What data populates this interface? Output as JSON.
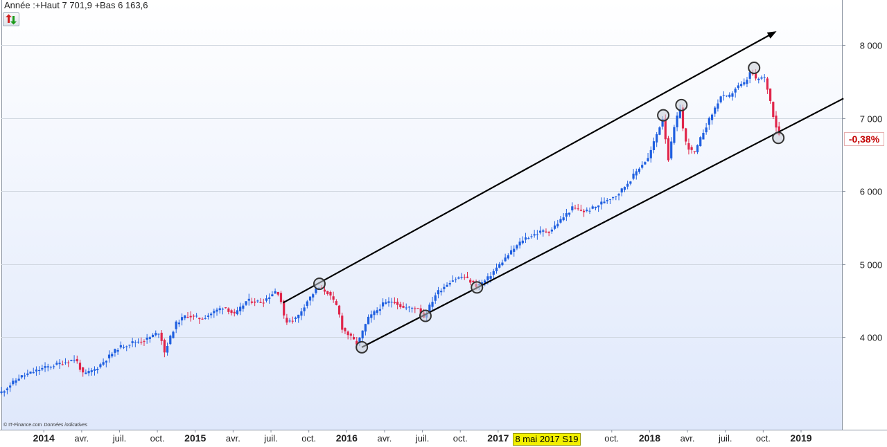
{
  "header": {
    "title": "Année :+Haut 7 701,9 +Bas 6 163,6"
  },
  "toolbar": {
    "refresh_icon": "refresh-arrows-icon"
  },
  "footer": {
    "copyright": "© IT-Finance.com",
    "notice": "Données indicatives"
  },
  "badges": {
    "change": "-0,38%",
    "cursor_date": "8 mai 2017 S19"
  },
  "colors": {
    "up_candle": "#1f5fe0",
    "down_candle": "#e0254a",
    "plot_bg_top": "#ffffff",
    "plot_bg_bottom": "#dfe8fb",
    "channel_line": "#000000",
    "marker_fill": "#c8ced6",
    "change_text": "#c40000",
    "date_badge": "#f2f000"
  },
  "chart_data": {
    "type": "candlestick",
    "x_ticks": [
      {
        "label": "2014",
        "t": 2014.0,
        "bold": true
      },
      {
        "label": "avr.",
        "t": 2014.25
      },
      {
        "label": "juil.",
        "t": 2014.5
      },
      {
        "label": "oct.",
        "t": 2014.75
      },
      {
        "label": "2015",
        "t": 2015.0,
        "bold": true
      },
      {
        "label": "avr.",
        "t": 2015.25
      },
      {
        "label": "juil.",
        "t": 2015.5
      },
      {
        "label": "oct.",
        "t": 2015.75
      },
      {
        "label": "2016",
        "t": 2016.0,
        "bold": true
      },
      {
        "label": "avr.",
        "t": 2016.25
      },
      {
        "label": "juil.",
        "t": 2016.5
      },
      {
        "label": "oct.",
        "t": 2016.75
      },
      {
        "label": "2017",
        "t": 2017.0,
        "bold": true
      },
      {
        "label": "oct.",
        "t": 2017.75
      },
      {
        "label": "2018",
        "t": 2018.0,
        "bold": true
      },
      {
        "label": "avr.",
        "t": 2018.25
      },
      {
        "label": "juil.",
        "t": 2018.5
      },
      {
        "label": "oct.",
        "t": 2018.75
      },
      {
        "label": "2019",
        "t": 2019.0,
        "bold": true
      }
    ],
    "y_ticks": [
      {
        "label": "4 000",
        "v": 4000
      },
      {
        "label": "5 000",
        "v": 5000
      },
      {
        "label": "6 000",
        "v": 6000
      },
      {
        "label": "7 000",
        "v": 7000
      },
      {
        "label": "8 000",
        "v": 8000
      }
    ],
    "x_range": [
      2013.72,
      2019.27
    ],
    "y_range": [
      2730,
      8620
    ],
    "grid": true,
    "path": [
      [
        2013.72,
        3230
      ],
      [
        2013.85,
        3450
      ],
      [
        2014.0,
        3570
      ],
      [
        2014.12,
        3640
      ],
      [
        2014.22,
        3700
      ],
      [
        2014.27,
        3480
      ],
      [
        2014.35,
        3560
      ],
      [
        2014.5,
        3850
      ],
      [
        2014.6,
        3930
      ],
      [
        2014.68,
        3960
      ],
      [
        2014.78,
        4080
      ],
      [
        2014.8,
        3760
      ],
      [
        2014.88,
        4180
      ],
      [
        2014.95,
        4300
      ],
      [
        2015.05,
        4250
      ],
      [
        2015.12,
        4330
      ],
      [
        2015.2,
        4420
      ],
      [
        2015.27,
        4300
      ],
      [
        2015.35,
        4500
      ],
      [
        2015.45,
        4480
      ],
      [
        2015.55,
        4650
      ],
      [
        2015.58,
        4460
      ],
      [
        2015.6,
        4210
      ],
      [
        2015.68,
        4260
      ],
      [
        2015.75,
        4500
      ],
      [
        2015.82,
        4680
      ],
      [
        2015.88,
        4620
      ],
      [
        2015.95,
        4400
      ],
      [
        2015.98,
        4120
      ],
      [
        2016.08,
        3900
      ],
      [
        2016.15,
        4250
      ],
      [
        2016.25,
        4450
      ],
      [
        2016.32,
        4500
      ],
      [
        2016.38,
        4400
      ],
      [
        2016.48,
        4400
      ],
      [
        2016.52,
        4270
      ],
      [
        2016.6,
        4600
      ],
      [
        2016.7,
        4780
      ],
      [
        2016.78,
        4830
      ],
      [
        2016.87,
        4700
      ],
      [
        2016.93,
        4780
      ],
      [
        2017.0,
        4950
      ],
      [
        2017.1,
        5180
      ],
      [
        2017.18,
        5350
      ],
      [
        2017.3,
        5450
      ],
      [
        2017.35,
        5450
      ],
      [
        2017.42,
        5600
      ],
      [
        2017.5,
        5770
      ],
      [
        2017.58,
        5720
      ],
      [
        2017.65,
        5780
      ],
      [
        2017.72,
        5880
      ],
      [
        2017.8,
        5960
      ],
      [
        2017.88,
        6150
      ],
      [
        2017.95,
        6350
      ],
      [
        2018.0,
        6450
      ],
      [
        2018.06,
        6800
      ],
      [
        2018.1,
        7030
      ],
      [
        2018.13,
        6400
      ],
      [
        2018.17,
        6850
      ],
      [
        2018.21,
        7150
      ],
      [
        2018.24,
        6700
      ],
      [
        2018.28,
        6550
      ],
      [
        2018.31,
        6520
      ],
      [
        2018.36,
        6800
      ],
      [
        2018.42,
        7050
      ],
      [
        2018.48,
        7300
      ],
      [
        2018.53,
        7280
      ],
      [
        2018.58,
        7420
      ],
      [
        2018.64,
        7480
      ],
      [
        2018.68,
        7650
      ],
      [
        2018.71,
        7520
      ],
      [
        2018.74,
        7550
      ],
      [
        2018.77,
        7550
      ],
      [
        2018.8,
        7300
      ],
      [
        2018.83,
        7000
      ],
      [
        2018.86,
        6780
      ]
    ],
    "channel": {
      "upper": [
        [
          2015.58,
          4470
        ],
        [
          2018.81,
          8160
        ]
      ],
      "lower": [
        [
          2016.1,
          3860
        ],
        [
          2019.28,
          7270
        ]
      ]
    },
    "touch_points": [
      [
        2015.82,
        4730
      ],
      [
        2016.1,
        3860
      ],
      [
        2016.52,
        4290
      ],
      [
        2016.86,
        4680
      ],
      [
        2018.09,
        7040
      ],
      [
        2018.21,
        7180
      ],
      [
        2018.69,
        7690
      ],
      [
        2018.85,
        6730
      ]
    ],
    "last_change": "-0,38%"
  }
}
